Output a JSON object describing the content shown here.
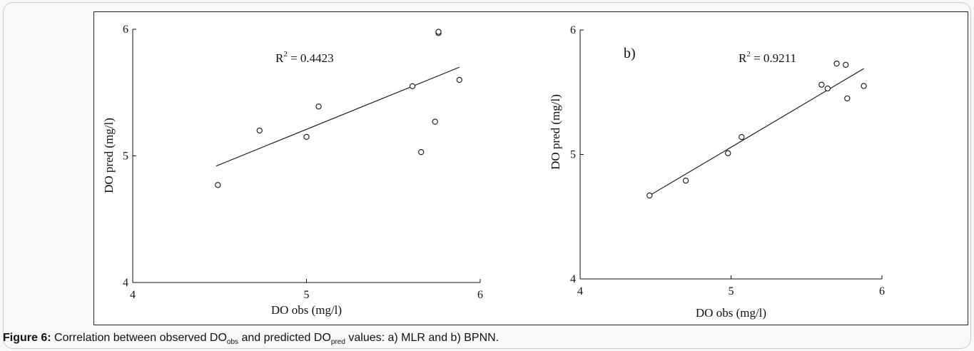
{
  "caption": {
    "label": "Figure 6:",
    "text_1": " Correlation between observed DO",
    "sub_1": "obs",
    "text_2": " and predicted DO",
    "sub_2": "pred",
    "text_3": " values: a) MLR and b) BPNN."
  },
  "chart_data": [
    {
      "type": "scatter",
      "panel_label": "",
      "r2_label": "R",
      "r2_sup": "2",
      "r2_value": " = 0.4423",
      "xlabel": "DO obs (mg/l)",
      "ylabel": "DO pred (mg/l)",
      "xlim": [
        4,
        6
      ],
      "ylim": [
        4,
        6
      ],
      "xticks": [
        "4",
        "5",
        "6"
      ],
      "yticks": [
        "4",
        "5",
        "6"
      ],
      "points": [
        {
          "x": 4.49,
          "y": 4.77
        },
        {
          "x": 4.73,
          "y": 5.2
        },
        {
          "x": 5.0,
          "y": 5.15
        },
        {
          "x": 5.07,
          "y": 5.39
        },
        {
          "x": 5.61,
          "y": 5.55
        },
        {
          "x": 5.66,
          "y": 5.03
        },
        {
          "x": 5.74,
          "y": 5.27
        },
        {
          "x": 5.76,
          "y": 5.97
        },
        {
          "x": 5.76,
          "y": 5.98
        },
        {
          "x": 5.88,
          "y": 5.6
        }
      ],
      "fit_line": {
        "x": [
          4.48,
          5.88
        ],
        "y": [
          4.92,
          5.7
        ]
      }
    },
    {
      "type": "scatter",
      "panel_label": "b)",
      "r2_label": "R",
      "r2_sup": "2",
      "r2_value": " = 0.9211",
      "xlabel": "DO obs (mg/l)",
      "ylabel": "DO pred (mg/l)",
      "xlim": [
        4,
        6
      ],
      "ylim": [
        4,
        6
      ],
      "xticks": [
        "4",
        "5",
        "6"
      ],
      "yticks": [
        "4",
        "5",
        "6"
      ],
      "points": [
        {
          "x": 4.46,
          "y": 4.67
        },
        {
          "x": 4.7,
          "y": 4.79
        },
        {
          "x": 4.98,
          "y": 5.01
        },
        {
          "x": 5.07,
          "y": 5.14
        },
        {
          "x": 5.6,
          "y": 5.56
        },
        {
          "x": 5.64,
          "y": 5.53
        },
        {
          "x": 5.7,
          "y": 5.73
        },
        {
          "x": 5.76,
          "y": 5.72
        },
        {
          "x": 5.77,
          "y": 5.45
        },
        {
          "x": 5.88,
          "y": 5.55
        }
      ],
      "fit_line": {
        "x": [
          4.46,
          5.88
        ],
        "y": [
          4.67,
          5.69
        ]
      }
    }
  ]
}
